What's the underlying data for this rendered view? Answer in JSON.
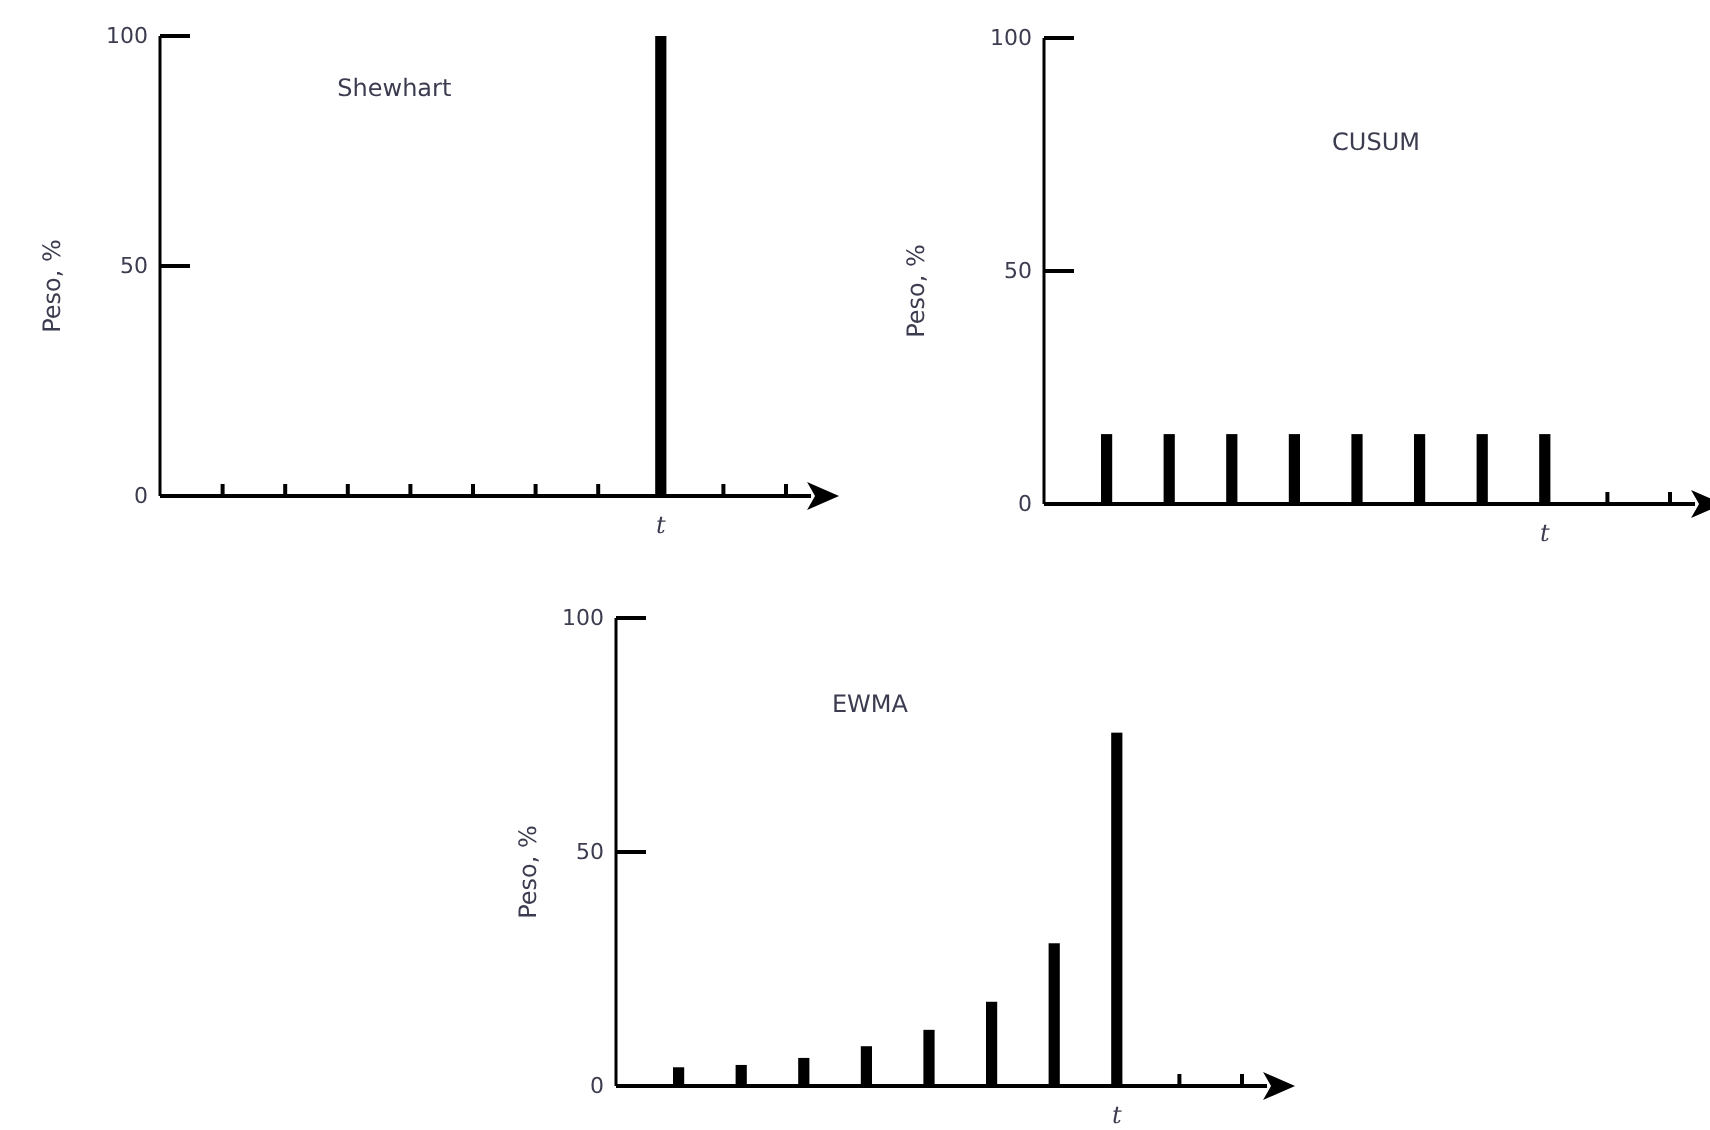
{
  "chart_data": [
    {
      "type": "bar",
      "title": "Shewhart",
      "ylabel": "Peso, %",
      "categories": [
        null,
        null,
        null,
        null,
        null,
        null,
        null,
        "t",
        null,
        null
      ],
      "values": [
        0,
        0,
        0,
        0,
        0,
        0,
        0,
        100,
        0,
        0
      ],
      "color": "#000000",
      "ylim": [
        0,
        100
      ],
      "yticks": [
        0,
        50,
        100
      ]
    },
    {
      "type": "bar",
      "title": "CUSUM",
      "ylabel": "Peso, %",
      "categories": [
        null,
        null,
        null,
        null,
        null,
        null,
        null,
        "t",
        null,
        null
      ],
      "values": [
        15,
        15,
        15,
        15,
        15,
        15,
        15,
        15,
        0,
        0
      ],
      "color": "#000000",
      "ylim": [
        0,
        100
      ],
      "yticks": [
        0,
        50,
        100
      ]
    },
    {
      "type": "bar",
      "title": "EWMA",
      "ylabel": "Peso, %",
      "categories": [
        null,
        null,
        null,
        null,
        null,
        null,
        null,
        "t",
        null,
        null
      ],
      "values": [
        4,
        4.5,
        6,
        8.5,
        12,
        18,
        30.5,
        75.5,
        0,
        0
      ],
      "color": "#000000",
      "ylim": [
        0,
        100
      ],
      "yticks": [
        0,
        50,
        100
      ]
    }
  ]
}
